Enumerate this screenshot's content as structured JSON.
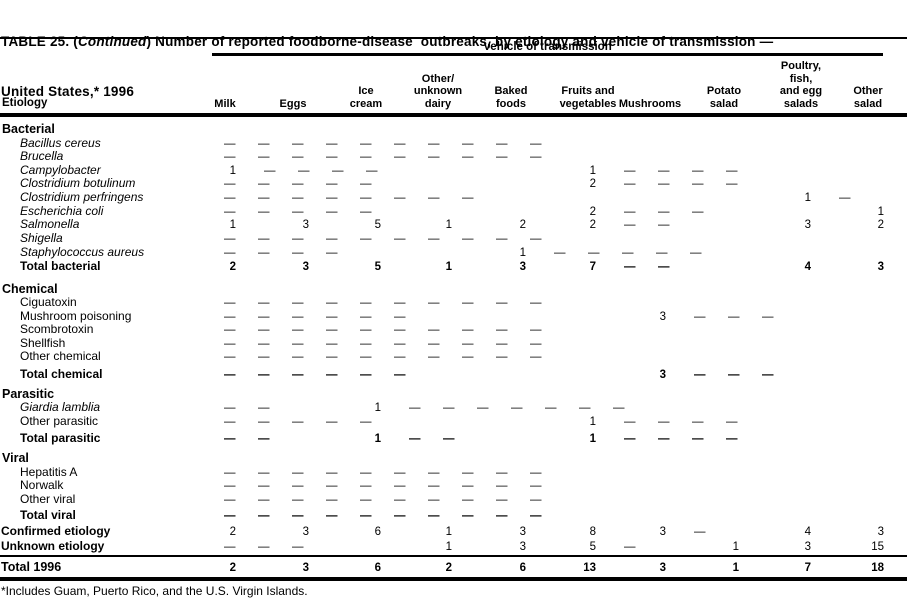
{
  "title": {
    "prefix": "TABLE 25. (",
    "continued": "Continued",
    "suffix": ") Number of reported foodborne-disease  outbreaks, by etiology and vehicle of transmission —",
    "line2": "United States,* 1996"
  },
  "table": {
    "spanner": "Vehicle of transmission",
    "etiology_header": "Etiology",
    "columns": [
      "Milk",
      "Eggs",
      "Ice\ncream",
      "Other/\nunknown\ndairy",
      "Baked\nfoods",
      "Fruits and\nvegetables",
      "Mushrooms",
      "Potato\nsalad",
      "Poultry,\nfish,\nand egg\nsalads",
      "Other\nsalad"
    ],
    "rows": [
      {
        "label": "Bacterial",
        "style": "section",
        "cells": []
      },
      {
        "label": "Bacillus cereus",
        "style": "italic",
        "cells": [
          "—",
          "—",
          "—",
          "—",
          "—",
          "—",
          "—",
          "—",
          "—",
          "—"
        ]
      },
      {
        "label": "Brucella",
        "style": "italic",
        "cells": [
          "—",
          "—",
          "—",
          "—",
          "—",
          "—",
          "—",
          "—",
          "—",
          "—"
        ]
      },
      {
        "label": "Campylobacter",
        "style": "italic",
        "cells": [
          "1",
          "—",
          "—",
          "—",
          "—",
          "1",
          "—",
          "—",
          "—",
          "—"
        ]
      },
      {
        "label": "Clostridium botulinum",
        "style": "italic",
        "cells": [
          "—",
          "—",
          "—",
          "—",
          "—",
          "2",
          "—",
          "—",
          "—",
          "—"
        ]
      },
      {
        "label": "Clostridium perfringens",
        "style": "italic",
        "cells": [
          "—",
          "—",
          "—",
          "—",
          "—",
          "—",
          "—",
          "—",
          "1",
          "—"
        ]
      },
      {
        "label": "Escherichia coli",
        "style": "italic",
        "cells": [
          "—",
          "—",
          "—",
          "—",
          "—",
          "2",
          "—",
          "—",
          "—",
          "1"
        ]
      },
      {
        "label": "Salmonella",
        "style": "italic",
        "cells": [
          "1",
          "3",
          "5",
          "1",
          "2",
          "2",
          "—",
          "—",
          "3",
          "2"
        ]
      },
      {
        "label": "Shigella",
        "style": "italic",
        "cells": [
          "—",
          "—",
          "—",
          "—",
          "—",
          "—",
          "—",
          "—",
          "—",
          "—"
        ]
      },
      {
        "label": "Staphylococcus aureus",
        "style": "italic",
        "cells": [
          "—",
          "—",
          "—",
          "—",
          "1",
          "—",
          "—",
          "—",
          "—",
          "—"
        ]
      },
      {
        "label": "Total bacterial",
        "style": "total",
        "cells": [
          "2",
          "3",
          "5",
          "1",
          "3",
          "7",
          "—",
          "—",
          "4",
          "3"
        ]
      },
      {
        "label": "Chemical",
        "style": "section",
        "cells": []
      },
      {
        "label": "Ciguatoxin",
        "style": "item",
        "cells": [
          "—",
          "—",
          "—",
          "—",
          "—",
          "—",
          "—",
          "—",
          "—",
          "—"
        ]
      },
      {
        "label": "Mushroom poisoning",
        "style": "item",
        "cells": [
          "—",
          "—",
          "—",
          "—",
          "—",
          "—",
          "3",
          "—",
          "—",
          "—"
        ]
      },
      {
        "label": "Scombrotoxin",
        "style": "item",
        "cells": [
          "—",
          "—",
          "—",
          "—",
          "—",
          "—",
          "—",
          "—",
          "—",
          "—"
        ]
      },
      {
        "label": "Shellfish",
        "style": "item",
        "cells": [
          "—",
          "—",
          "—",
          "—",
          "—",
          "—",
          "—",
          "—",
          "—",
          "—"
        ]
      },
      {
        "label": "Other chemical",
        "style": "item",
        "cells": [
          "—",
          "—",
          "—",
          "—",
          "—",
          "—",
          "—",
          "—",
          "—",
          "—"
        ]
      },
      {
        "label": "Total chemical",
        "style": "total",
        "cells": [
          "—",
          "—",
          "—",
          "—",
          "—",
          "—",
          "3",
          "—",
          "—",
          "—"
        ]
      },
      {
        "label": "Parasitic",
        "style": "section",
        "cells": []
      },
      {
        "label": "Giardia lamblia",
        "style": "italic",
        "cells": [
          "—",
          "—",
          "1",
          "—",
          "—",
          "—",
          "—",
          "—",
          "—",
          "—"
        ]
      },
      {
        "label": "Other parasitic",
        "style": "item",
        "cells": [
          "—",
          "—",
          "—",
          "—",
          "—",
          "1",
          "—",
          "—",
          "—",
          "—"
        ]
      },
      {
        "label": "Total parasitic",
        "style": "total",
        "cells": [
          "—",
          "—",
          "1",
          "—",
          "—",
          "1",
          "—",
          "—",
          "—",
          "—"
        ]
      },
      {
        "label": "Viral",
        "style": "section",
        "cells": []
      },
      {
        "label": "Hepatitis A",
        "style": "item",
        "cells": [
          "—",
          "—",
          "—",
          "—",
          "—",
          "—",
          "—",
          "—",
          "—",
          "—"
        ]
      },
      {
        "label": "Norwalk",
        "style": "item",
        "cells": [
          "—",
          "—",
          "—",
          "—",
          "—",
          "—",
          "—",
          "—",
          "—",
          "—"
        ]
      },
      {
        "label": "Other viral",
        "style": "item",
        "cells": [
          "—",
          "—",
          "—",
          "—",
          "—",
          "—",
          "—",
          "—",
          "—",
          "—"
        ]
      },
      {
        "label": "Total viral",
        "style": "total",
        "cells": [
          "—",
          "—",
          "—",
          "—",
          "—",
          "—",
          "—",
          "—",
          "—",
          "—"
        ]
      },
      {
        "label": "Confirmed etiology",
        "style": "boldlabel",
        "cells": [
          "2",
          "3",
          "6",
          "1",
          "3",
          "8",
          "3",
          "—",
          "4",
          "3"
        ]
      },
      {
        "label": "Unknown etiology",
        "style": "boldlabel",
        "cells": [
          "—",
          "—",
          "—",
          "1",
          "3",
          "5",
          "—",
          "1",
          "3",
          "15"
        ]
      },
      {
        "label": "Total 1996",
        "style": "grand",
        "cells": [
          "2",
          "3",
          "6",
          "2",
          "6",
          "13",
          "3",
          "1",
          "7",
          "18"
        ]
      }
    ]
  },
  "footnote": "*Includes Guam, Puerto Rico, and the U.S. Virgin Islands."
}
